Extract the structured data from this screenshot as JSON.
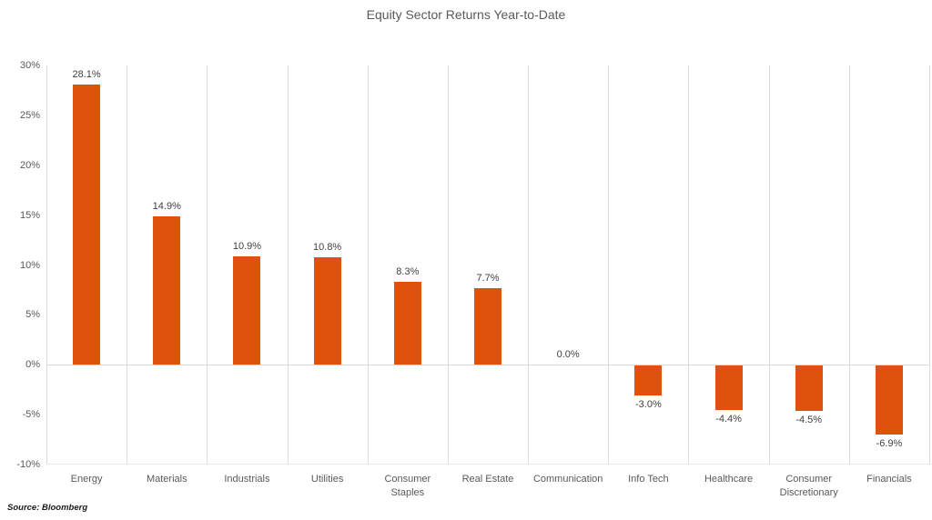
{
  "chart_data": {
    "type": "bar",
    "title": "Equity Sector Returns Year-to-Date",
    "xlabel": "",
    "ylabel": "",
    "categories": [
      "Energy",
      "Materials",
      "Industrials",
      "Utilities",
      "Consumer\nStaples",
      "Real Estate",
      "Communication",
      "Info Tech",
      "Healthcare",
      "Consumer\nDiscretionary",
      "Financials"
    ],
    "values": [
      28.1,
      14.9,
      10.9,
      10.8,
      8.3,
      7.7,
      0.0,
      -3.0,
      -4.4,
      -4.5,
      -6.9
    ],
    "data_labels": [
      "28.1%",
      "14.9%",
      "10.9%",
      "10.8%",
      "8.3%",
      "7.7%",
      "0.0%",
      "-3.0%",
      "-4.4%",
      "-4.5%",
      "-6.9%"
    ],
    "y_tick_labels": [
      "30%",
      "25%",
      "20%",
      "15%",
      "10%",
      "5%",
      "0%",
      "-5%",
      "-10%"
    ],
    "y_tick_values": [
      30,
      25,
      20,
      15,
      10,
      5,
      0,
      -5,
      -10
    ],
    "ylim": [
      -10,
      30
    ],
    "legend": "none",
    "grid": "vertical category separators, zero line",
    "bar_color": "#DF520D"
  },
  "colors": {
    "bar": "#DF520D",
    "gridline": "#D9D9D9",
    "axis_text": "#595959",
    "data_label_text": "#404040",
    "title_text": "#595959"
  },
  "source_note": "Source: Bloomberg"
}
